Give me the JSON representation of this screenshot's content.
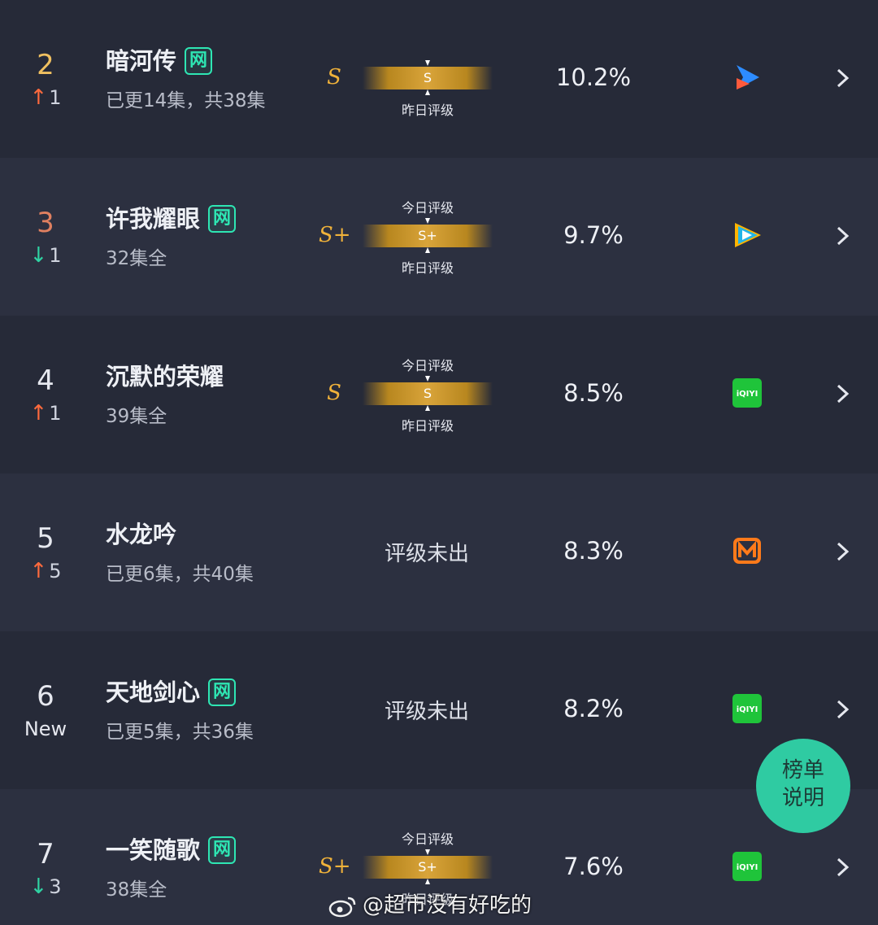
{
  "rows": [
    {
      "rank": "2",
      "change_dir": "up",
      "change_val": "1",
      "title": "暗河传",
      "net": true,
      "episodes": "已更14集，共38集",
      "grade": "S",
      "today_label": "",
      "bar_text": "S",
      "yest_label": "昨日评级",
      "share": "10.2%",
      "platform": "youku"
    },
    {
      "rank": "3",
      "change_dir": "down",
      "change_val": "1",
      "title": "许我耀眼",
      "net": true,
      "episodes": "32集全",
      "grade": "S+",
      "today_label": "今日评级",
      "bar_text": "S+",
      "yest_label": "昨日评级",
      "share": "9.7%",
      "platform": "tencent"
    },
    {
      "rank": "4",
      "change_dir": "up",
      "change_val": "1",
      "title": "沉默的荣耀",
      "net": false,
      "episodes": "39集全",
      "grade": "S",
      "today_label": "今日评级",
      "bar_text": "S",
      "yest_label": "昨日评级",
      "share": "8.5%",
      "platform": "iqiyi"
    },
    {
      "rank": "5",
      "change_dir": "up",
      "change_val": "5",
      "title": "水龙吟",
      "net": false,
      "episodes": "已更6集，共40集",
      "grade": "",
      "unrated": "评级未出",
      "share": "8.3%",
      "platform": "mango"
    },
    {
      "rank": "6",
      "change_dir": "new",
      "change_val": "New",
      "title": "天地剑心",
      "net": true,
      "episodes": "已更5集，共36集",
      "grade": "",
      "unrated": "评级未出",
      "share": "8.2%",
      "platform": "iqiyi"
    },
    {
      "rank": "7",
      "change_dir": "down",
      "change_val": "3",
      "title": "一笑随歌",
      "net": true,
      "episodes": "38集全",
      "grade": "S+",
      "today_label": "今日评级",
      "bar_text": "S+",
      "yest_label": "昨日评级",
      "share": "7.6%",
      "platform": "iqiyi"
    }
  ],
  "net_badge_text": "网",
  "iqiyi_text": "iQIYI",
  "floating_button": {
    "line1": "榜单",
    "line2": "说明"
  },
  "watermark": "@超市没有好吃的",
  "colors": {
    "background": "#262a38",
    "accent_teal": "#2ee6b3",
    "grade_gold": "#f0b23a",
    "up": "#ff6a3d",
    "down": "#2fd3a3"
  }
}
